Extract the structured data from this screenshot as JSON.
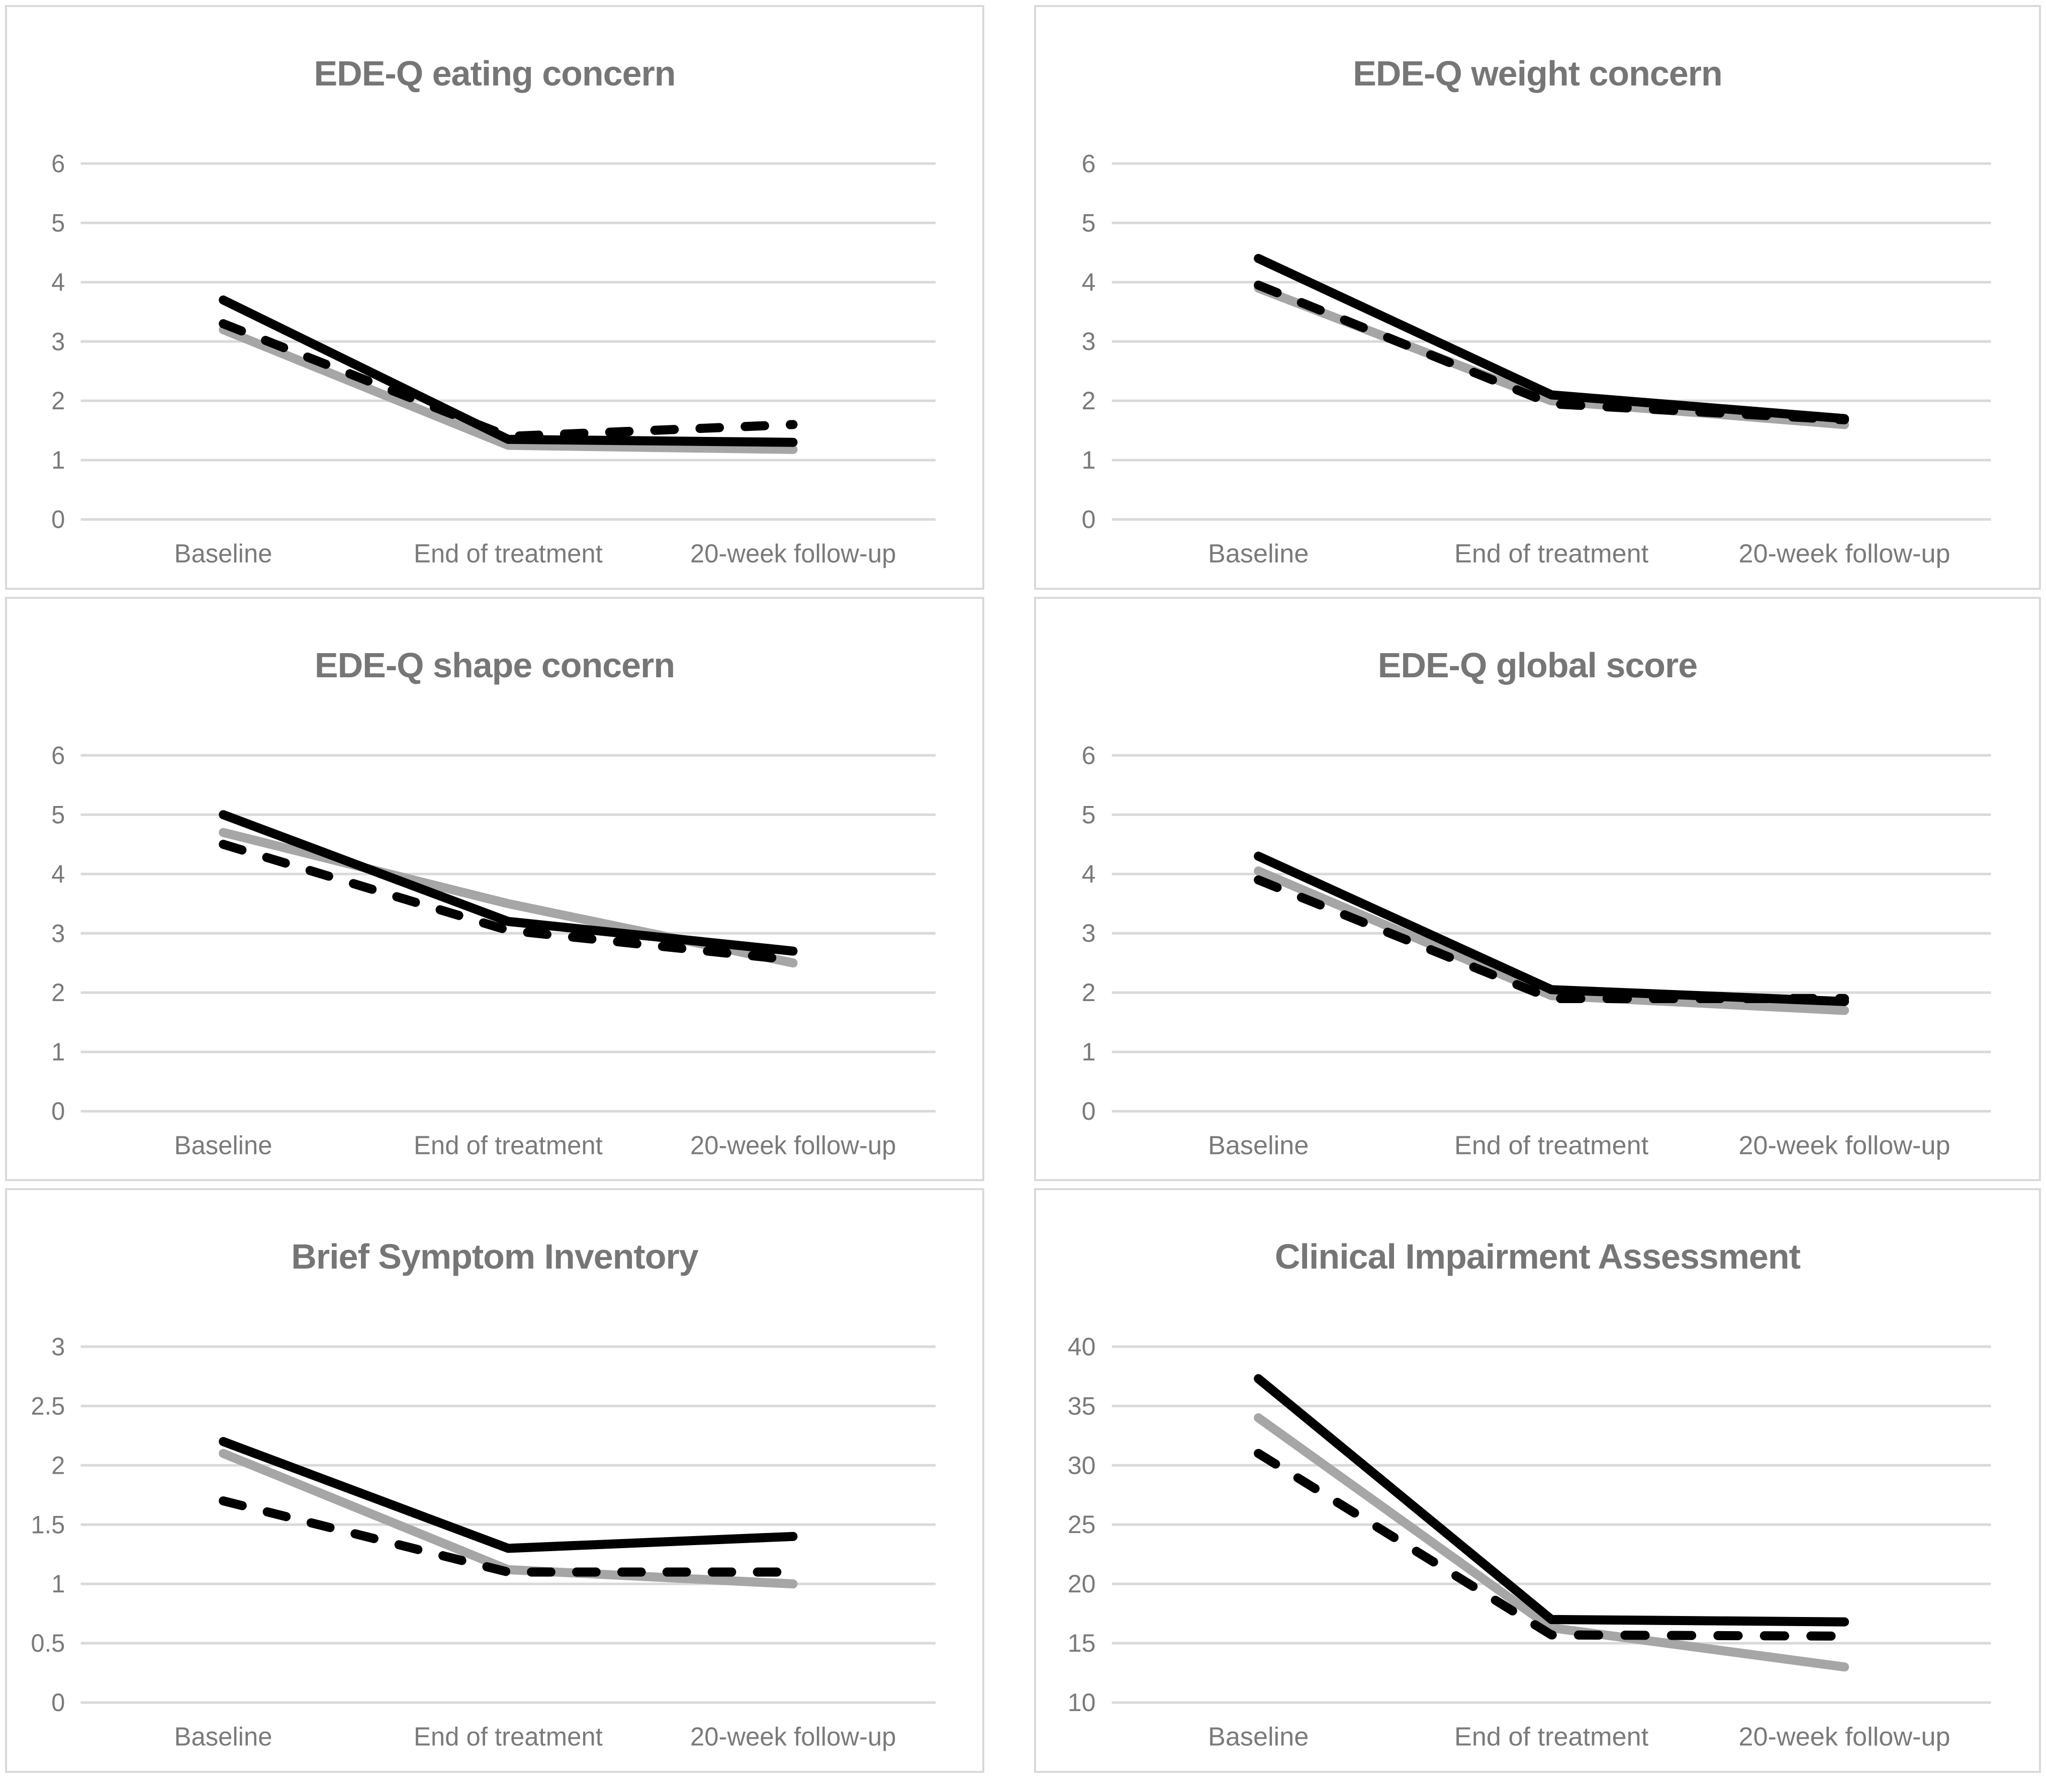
{
  "page": {
    "background": "#ffffff"
  },
  "styles": {
    "grid_color": "#d9d9d9",
    "panel_border_color": "#d9d9d9",
    "text_color": "#7a7a7a",
    "title_color": "#767676",
    "series_black": "#000000",
    "series_gray": "#a6a6a6"
  },
  "chart_data": [
    {
      "type": "line",
      "title": "EDE-Q eating concern",
      "categories": [
        "Baseline",
        "End of treatment",
        "20-week follow-up"
      ],
      "ylim": [
        0,
        6
      ],
      "yticks": [
        0,
        1,
        2,
        3,
        4,
        5,
        6
      ],
      "grid": true,
      "legend": "none",
      "series": [
        {
          "name": "solid-gray",
          "color": "#a6a6a6",
          "dash": "solid",
          "values": [
            3.2,
            1.25,
            1.18
          ]
        },
        {
          "name": "solid-black",
          "color": "#000000",
          "dash": "solid",
          "values": [
            3.7,
            1.35,
            1.3
          ]
        },
        {
          "name": "dashed-black",
          "color": "#000000",
          "dash": "dashed",
          "values": [
            3.3,
            1.4,
            1.6
          ]
        }
      ]
    },
    {
      "type": "line",
      "title": "EDE-Q weight concern",
      "categories": [
        "Baseline",
        "End of treatment",
        "20-week follow-up"
      ],
      "ylim": [
        0,
        6
      ],
      "yticks": [
        0,
        1,
        2,
        3,
        4,
        5,
        6
      ],
      "grid": true,
      "legend": "none",
      "series": [
        {
          "name": "solid-gray",
          "color": "#a6a6a6",
          "dash": "solid",
          "values": [
            3.9,
            2.0,
            1.6
          ]
        },
        {
          "name": "solid-black",
          "color": "#000000",
          "dash": "solid",
          "values": [
            4.4,
            2.1,
            1.7
          ]
        },
        {
          "name": "dashed-black",
          "color": "#000000",
          "dash": "dashed",
          "values": [
            3.95,
            1.95,
            1.68
          ]
        }
      ]
    },
    {
      "type": "line",
      "title": "EDE-Q shape concern",
      "categories": [
        "Baseline",
        "End of treatment",
        "20-week follow-up"
      ],
      "ylim": [
        0,
        6
      ],
      "yticks": [
        0,
        1,
        2,
        3,
        4,
        5,
        6
      ],
      "grid": true,
      "legend": "none",
      "series": [
        {
          "name": "solid-gray",
          "color": "#a6a6a6",
          "dash": "solid",
          "values": [
            4.7,
            3.5,
            2.5
          ]
        },
        {
          "name": "solid-black",
          "color": "#000000",
          "dash": "solid",
          "values": [
            5.0,
            3.2,
            2.7
          ]
        },
        {
          "name": "dashed-black",
          "color": "#000000",
          "dash": "dashed",
          "values": [
            4.5,
            3.05,
            2.55
          ]
        }
      ]
    },
    {
      "type": "line",
      "title": "EDE-Q global score",
      "categories": [
        "Baseline",
        "End of treatment",
        "20-week follow-up"
      ],
      "ylim": [
        0,
        6
      ],
      "yticks": [
        0,
        1,
        2,
        3,
        4,
        5,
        6
      ],
      "grid": true,
      "legend": "none",
      "series": [
        {
          "name": "solid-gray",
          "color": "#a6a6a6",
          "dash": "solid",
          "values": [
            4.05,
            1.95,
            1.7
          ]
        },
        {
          "name": "solid-black",
          "color": "#000000",
          "dash": "solid",
          "values": [
            4.3,
            2.05,
            1.85
          ]
        },
        {
          "name": "dashed-black",
          "color": "#000000",
          "dash": "dashed",
          "values": [
            3.9,
            1.9,
            1.9
          ]
        }
      ]
    },
    {
      "type": "line",
      "title": "Brief Symptom Inventory",
      "categories": [
        "Baseline",
        "End of treatment",
        "20-week follow-up"
      ],
      "ylim": [
        0,
        3
      ],
      "yticks": [
        0,
        0.5,
        1,
        1.5,
        2,
        2.5,
        3
      ],
      "grid": true,
      "legend": "none",
      "series": [
        {
          "name": "solid-gray",
          "color": "#a6a6a6",
          "dash": "solid",
          "values": [
            2.1,
            1.12,
            1.0
          ]
        },
        {
          "name": "solid-black",
          "color": "#000000",
          "dash": "solid",
          "values": [
            2.2,
            1.3,
            1.4
          ]
        },
        {
          "name": "dashed-black",
          "color": "#000000",
          "dash": "dashed",
          "values": [
            1.7,
            1.1,
            1.1
          ]
        }
      ]
    },
    {
      "type": "line",
      "title": "Clinical Impairment Assessment",
      "categories": [
        "Baseline",
        "End of treatment",
        "20-week follow-up"
      ],
      "ylim": [
        10,
        40
      ],
      "yticks": [
        10,
        15,
        20,
        25,
        30,
        35,
        40
      ],
      "grid": true,
      "legend": "none",
      "series": [
        {
          "name": "solid-gray",
          "color": "#a6a6a6",
          "dash": "solid",
          "values": [
            34,
            16.3,
            13
          ]
        },
        {
          "name": "solid-black",
          "color": "#000000",
          "dash": "solid",
          "values": [
            37.3,
            17,
            16.8
          ]
        },
        {
          "name": "dashed-black",
          "color": "#000000",
          "dash": "dashed",
          "values": [
            31,
            15.7,
            15.6
          ]
        }
      ]
    }
  ]
}
